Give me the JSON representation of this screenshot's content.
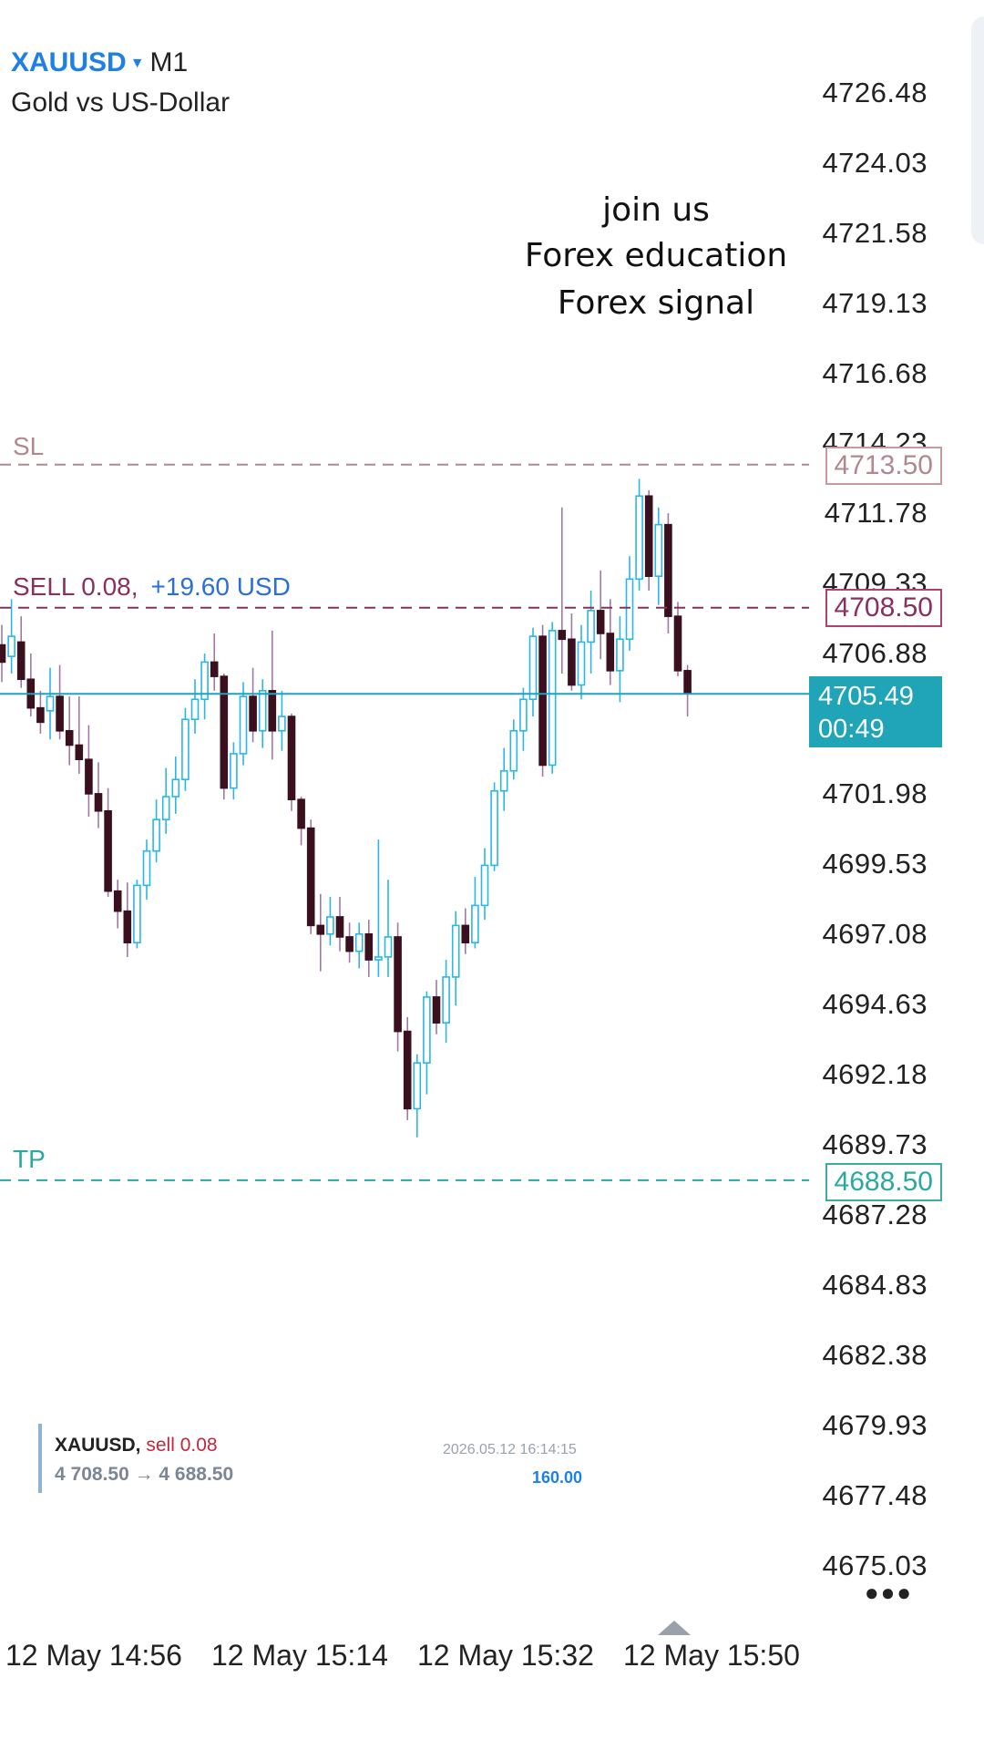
{
  "header": {
    "symbol": "XAUUSD",
    "timeframe": "M1",
    "description": "Gold vs US-Dollar"
  },
  "promo": {
    "lines": [
      "join us",
      "Forex education",
      "Forex signal"
    ]
  },
  "price_axis": {
    "ticks": [
      "4726.48",
      "4724.03",
      "4721.58",
      "4719.13",
      "4716.68",
      "4714.23",
      "4711.78",
      "4709.33",
      "4706.88",
      "4701.98",
      "4699.53",
      "4697.08",
      "4694.63",
      "4692.18",
      "4689.73",
      "4687.28",
      "4684.83",
      "4682.38",
      "4679.93",
      "4677.48",
      "4675.03"
    ]
  },
  "order_lines": {
    "sl": {
      "label": "SL",
      "price": "4713.50",
      "value": 4713.5
    },
    "entry": {
      "label": "SELL 0.08,",
      "profit": "+19.60 USD",
      "price": "4708.50",
      "value": 4708.5
    },
    "tp": {
      "label": "TP",
      "price": "4688.50",
      "value": 4688.5
    },
    "current": {
      "price": "4705.49",
      "countdown": "00:49",
      "value": 4705.49
    }
  },
  "trade_info": {
    "symbol": "XAUUSD,",
    "side": "sell 0.08",
    "range": "4 708.50 → 4 688.50",
    "timestamp": "2026.05.12 16:14:15",
    "points": "160.00"
  },
  "time_axis": {
    "labels": [
      "12 May 14:56",
      "12 May 15:14",
      "12 May 15:32",
      "12 May 15:50"
    ]
  },
  "colors": {
    "bull": "#29b6e8",
    "bear": "#3a0f1e",
    "sl": "#b08890",
    "entry": "#8a3060",
    "tp": "#2aa9a0",
    "current": "#1fa4b8",
    "accent": "#1e7fe6"
  },
  "icons": {
    "more": "more-dots-icon",
    "scroll_up": "up-triangle-icon",
    "dropdown": "caret-down-icon"
  },
  "chart_data": {
    "type": "candlestick",
    "ylim": [
      4675.03,
      4726.48
    ],
    "candles": [
      [
        4707.2,
        4707.9,
        4705.9,
        4706.6
      ],
      [
        4706.8,
        4708.8,
        4706.2,
        4707.5
      ],
      [
        4707.3,
        4708.2,
        4705.7,
        4706.0
      ],
      [
        4706.0,
        4706.9,
        4704.7,
        4705.0
      ],
      [
        4705.0,
        4705.6,
        4704.1,
        4704.5
      ],
      [
        4704.9,
        4706.4,
        4703.9,
        4705.4
      ],
      [
        4705.4,
        4706.5,
        4703.9,
        4704.2
      ],
      [
        4704.2,
        4705.4,
        4703.0,
        4703.7
      ],
      [
        4703.7,
        4705.4,
        4702.7,
        4703.2
      ],
      [
        4703.2,
        4704.4,
        4701.2,
        4702.0
      ],
      [
        4702.0,
        4703.1,
        4700.8,
        4701.4
      ],
      [
        4701.4,
        4702.2,
        4698.4,
        4698.6
      ],
      [
        4698.6,
        4699.0,
        4697.3,
        4697.9
      ],
      [
        4697.9,
        4698.9,
        4696.3,
        4696.8
      ],
      [
        4696.8,
        4699.0,
        4696.6,
        4698.8
      ],
      [
        4698.8,
        4700.4,
        4698.3,
        4700.0
      ],
      [
        4700.0,
        4701.8,
        4699.6,
        4701.1
      ],
      [
        4701.1,
        4702.9,
        4700.6,
        4701.9
      ],
      [
        4701.9,
        4703.3,
        4701.3,
        4702.5
      ],
      [
        4702.5,
        4705.0,
        4702.1,
        4704.6
      ],
      [
        4704.6,
        4706.0,
        4704.1,
        4705.3
      ],
      [
        4705.3,
        4706.9,
        4704.6,
        4706.6
      ],
      [
        4706.6,
        4707.6,
        4705.6,
        4706.1
      ],
      [
        4706.1,
        4706.2,
        4701.8,
        4702.2
      ],
      [
        4702.2,
        4703.8,
        4701.8,
        4703.4
      ],
      [
        4703.4,
        4705.9,
        4703.0,
        4705.4
      ],
      [
        4705.4,
        4706.4,
        4703.8,
        4704.2
      ],
      [
        4704.2,
        4706.0,
        4703.6,
        4705.6
      ],
      [
        4705.6,
        4707.7,
        4703.2,
        4704.2
      ],
      [
        4704.2,
        4705.6,
        4703.5,
        4704.7
      ],
      [
        4704.7,
        4704.8,
        4701.4,
        4701.8
      ],
      [
        4701.8,
        4701.9,
        4700.2,
        4700.8
      ],
      [
        4700.8,
        4701.1,
        4697.1,
        4697.4
      ],
      [
        4697.4,
        4698.5,
        4695.8,
        4697.1
      ],
      [
        4697.1,
        4698.4,
        4696.7,
        4697.7
      ],
      [
        4697.7,
        4698.4,
        4696.5,
        4697.0
      ],
      [
        4697.0,
        4697.5,
        4696.1,
        4696.5
      ],
      [
        4696.5,
        4697.5,
        4695.9,
        4697.1
      ],
      [
        4697.1,
        4697.6,
        4695.6,
        4696.2
      ],
      [
        4696.2,
        4700.4,
        4695.6,
        4696.3
      ],
      [
        4696.3,
        4699.0,
        4695.6,
        4697.0
      ],
      [
        4697.0,
        4697.5,
        4693.0,
        4693.7
      ],
      [
        4693.7,
        4694.2,
        4690.6,
        4691.0
      ],
      [
        4691.0,
        4692.9,
        4690.0,
        4692.6
      ],
      [
        4692.6,
        4695.1,
        4691.5,
        4694.9
      ],
      [
        4694.9,
        4695.5,
        4693.6,
        4694.0
      ],
      [
        4694.0,
        4696.2,
        4693.3,
        4695.6
      ],
      [
        4695.6,
        4697.9,
        4694.6,
        4697.4
      ],
      [
        4697.4,
        4698.0,
        4696.4,
        4696.8
      ],
      [
        4696.8,
        4699.1,
        4696.6,
        4698.1
      ],
      [
        4698.1,
        4700.1,
        4697.6,
        4699.5
      ],
      [
        4699.5,
        4702.4,
        4699.3,
        4702.1
      ],
      [
        4702.1,
        4703.6,
        4701.4,
        4702.8
      ],
      [
        4702.8,
        4704.6,
        4702.5,
        4704.2
      ],
      [
        4704.2,
        4705.7,
        4703.5,
        4705.3
      ],
      [
        4705.3,
        4707.8,
        4704.7,
        4707.5
      ],
      [
        4707.5,
        4707.9,
        4702.6,
        4703.0
      ],
      [
        4703.0,
        4708.0,
        4702.7,
        4707.7
      ],
      [
        4707.7,
        4712.0,
        4706.2,
        4707.4
      ],
      [
        4707.4,
        4708.3,
        4705.6,
        4705.8
      ],
      [
        4705.8,
        4707.9,
        4705.3,
        4707.3
      ],
      [
        4707.3,
        4709.1,
        4706.2,
        4708.4
      ],
      [
        4708.4,
        4709.8,
        4706.7,
        4707.6
      ],
      [
        4707.6,
        4708.8,
        4705.8,
        4706.3
      ],
      [
        4706.3,
        4708.2,
        4705.2,
        4707.4
      ],
      [
        4707.4,
        4710.3,
        4707.0,
        4709.5
      ],
      [
        4709.5,
        4713.0,
        4709.1,
        4712.4
      ],
      [
        4712.4,
        4712.6,
        4709.1,
        4709.6
      ],
      [
        4709.6,
        4712.0,
        4708.6,
        4711.4
      ],
      [
        4711.4,
        4711.8,
        4707.6,
        4708.2
      ],
      [
        4708.2,
        4708.7,
        4706.1,
        4706.3
      ],
      [
        4706.3,
        4706.5,
        4704.7,
        4705.5
      ]
    ]
  }
}
